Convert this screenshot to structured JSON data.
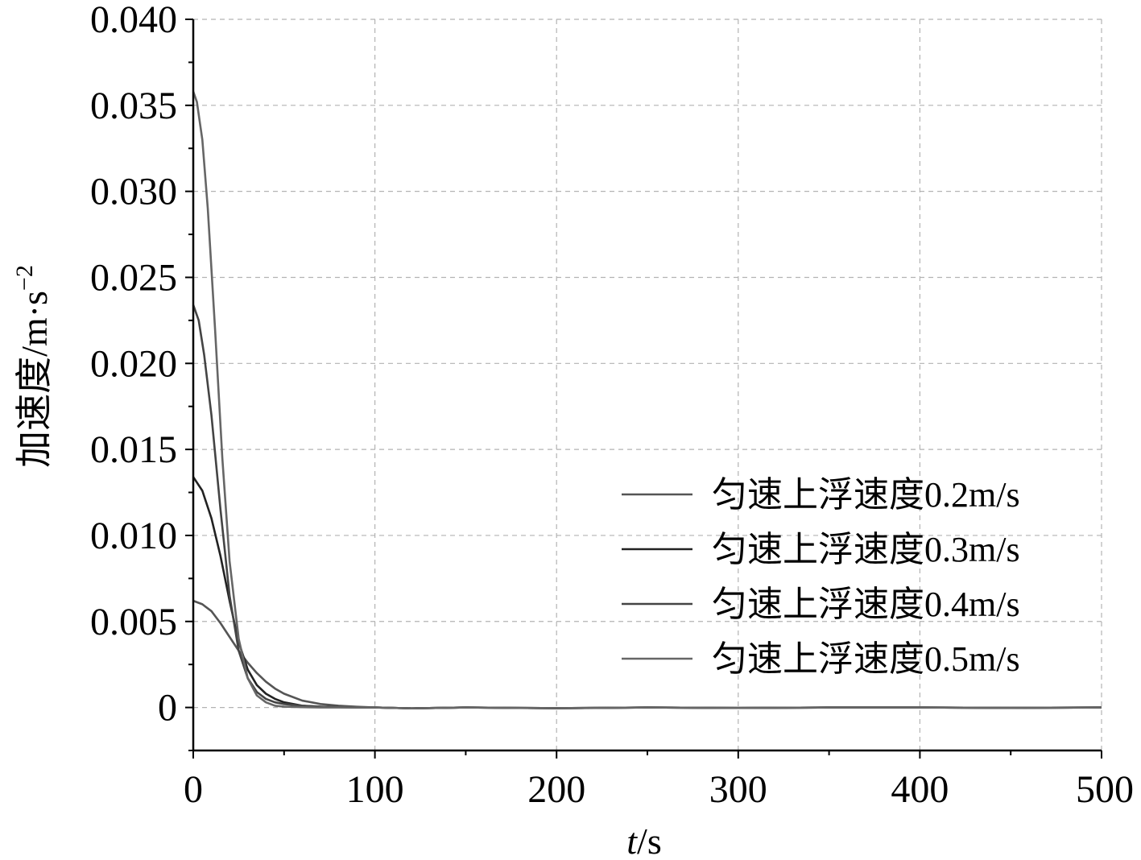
{
  "chart_data": {
    "type": "line",
    "title": "",
    "xlabel_italic": "t",
    "xlabel_unit": "/s",
    "ylabel_main": "加速度/m·s",
    "ylabel_sup": "−2",
    "xlim": [
      0,
      500
    ],
    "ylim": [
      -0.0025,
      0.04
    ],
    "x_ticks": [
      0,
      100,
      200,
      300,
      400,
      500
    ],
    "x_tick_labels": [
      "0",
      "100",
      "200",
      "300",
      "400",
      "500"
    ],
    "y_ticks": [
      0,
      0.005,
      0.01,
      0.015,
      0.02,
      0.025,
      0.03,
      0.035,
      0.04
    ],
    "y_tick_labels": [
      "0",
      "0.005",
      "0.010",
      "0.015",
      "0.020",
      "0.025",
      "0.030",
      "0.035",
      "0.040"
    ],
    "grid": true,
    "legend_position": "center-right",
    "series": [
      {
        "name": "匀速上浮速度0.2m/s",
        "color": "#555555",
        "x": [
          0,
          5,
          10,
          15,
          20,
          25,
          30,
          35,
          40,
          45,
          50,
          60,
          70,
          80,
          90,
          100,
          120,
          150,
          200,
          250,
          300,
          350,
          400,
          450,
          500
        ],
        "y": [
          0.0062,
          0.006,
          0.0056,
          0.0049,
          0.0041,
          0.0033,
          0.0026,
          0.002,
          0.0015,
          0.0011,
          0.0008,
          0.0004,
          0.0002,
          0.0001,
          4e-05,
          0.0,
          -5e-05,
          0.0,
          -5e-05,
          0.0,
          -3e-05,
          0.0,
          0.0,
          -3e-05,
          0.0
        ]
      },
      {
        "name": "匀速上浮速度0.3m/s",
        "color": "#222222",
        "x": [
          0,
          5,
          10,
          15,
          20,
          25,
          30,
          35,
          40,
          45,
          50,
          60,
          70,
          80,
          90,
          100,
          120,
          150,
          200,
          250,
          300,
          350,
          400,
          450,
          500
        ],
        "y": [
          0.0134,
          0.0126,
          0.011,
          0.0088,
          0.0062,
          0.0038,
          0.0022,
          0.0013,
          0.0008,
          0.0005,
          0.0003,
          0.0001,
          5e-05,
          2e-05,
          0.0,
          0.0,
          -5e-05,
          0.0,
          -4e-05,
          0.0,
          -3e-05,
          0.0,
          0.0,
          -2e-05,
          0.0
        ]
      },
      {
        "name": "匀速上浮速度0.4m/s",
        "color": "#444444",
        "x": [
          0,
          3,
          6,
          10,
          15,
          20,
          25,
          30,
          35,
          40,
          45,
          50,
          60,
          70,
          80,
          90,
          100,
          120,
          150,
          200,
          250,
          300,
          350,
          400,
          450,
          500
        ],
        "y": [
          0.0234,
          0.0225,
          0.0205,
          0.017,
          0.0115,
          0.0065,
          0.0033,
          0.0017,
          0.0009,
          0.0005,
          0.0003,
          0.0002,
          0.0001,
          4e-05,
          2e-05,
          0.0,
          0.0,
          -5e-05,
          0.0,
          -4e-05,
          0.0,
          -3e-05,
          0.0,
          0.0,
          -2e-05,
          0.0
        ]
      },
      {
        "name": "匀速上浮速度0.5m/s",
        "color": "#666666",
        "x": [
          0,
          2,
          5,
          8,
          12,
          16,
          20,
          25,
          30,
          35,
          40,
          45,
          50,
          60,
          70,
          80,
          90,
          100,
          120,
          150,
          200,
          250,
          300,
          350,
          400,
          450,
          500
        ],
        "y": [
          0.0358,
          0.0352,
          0.033,
          0.029,
          0.022,
          0.0145,
          0.0085,
          0.004,
          0.0017,
          0.0007,
          0.0003,
          0.0001,
          5e-05,
          2e-05,
          0.0,
          0.0,
          0.0,
          0.0,
          -5e-05,
          0.0,
          -4e-05,
          0.0,
          -3e-05,
          0.0,
          0.0,
          -2e-05,
          0.0
        ]
      }
    ]
  }
}
